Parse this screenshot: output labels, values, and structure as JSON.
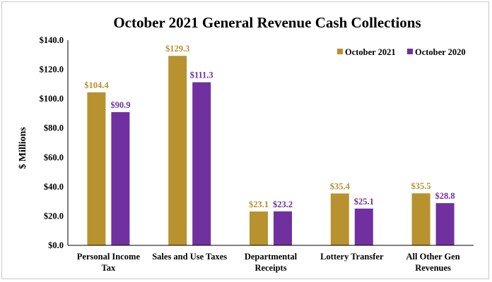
{
  "chart_data": {
    "type": "bar",
    "title": "October 2021 General Revenue Cash Collections",
    "ylabel": "$ Millions",
    "xlabel": "",
    "ylim": [
      0,
      140
    ],
    "yticks": [
      "$0.0",
      "$20.0",
      "$40.0",
      "$60.0",
      "$80.0",
      "$100.0",
      "$120.0",
      "$140.0"
    ],
    "categories": [
      [
        "Personal Income",
        "Tax"
      ],
      [
        "Sales and Use Taxes"
      ],
      [
        "Departmental",
        "Receipts"
      ],
      [
        "Lottery Transfer"
      ],
      [
        "All Other Gen",
        "Revenues"
      ]
    ],
    "series": [
      {
        "name": "October 2021",
        "color": "#B8922E",
        "values": [
          104.4,
          129.3,
          23.1,
          35.4,
          35.5
        ],
        "labels": [
          "$104.4",
          "$129.3",
          "$23.1",
          "$35.4",
          "$35.5"
        ]
      },
      {
        "name": "October 2020",
        "color": "#7030A0",
        "values": [
          90.9,
          111.3,
          23.2,
          25.1,
          28.8
        ],
        "labels": [
          "$90.9",
          "$111.3",
          "$23.2",
          "$25.1",
          "$28.8"
        ]
      }
    ],
    "legend_position": "top-right",
    "grid": false
  }
}
